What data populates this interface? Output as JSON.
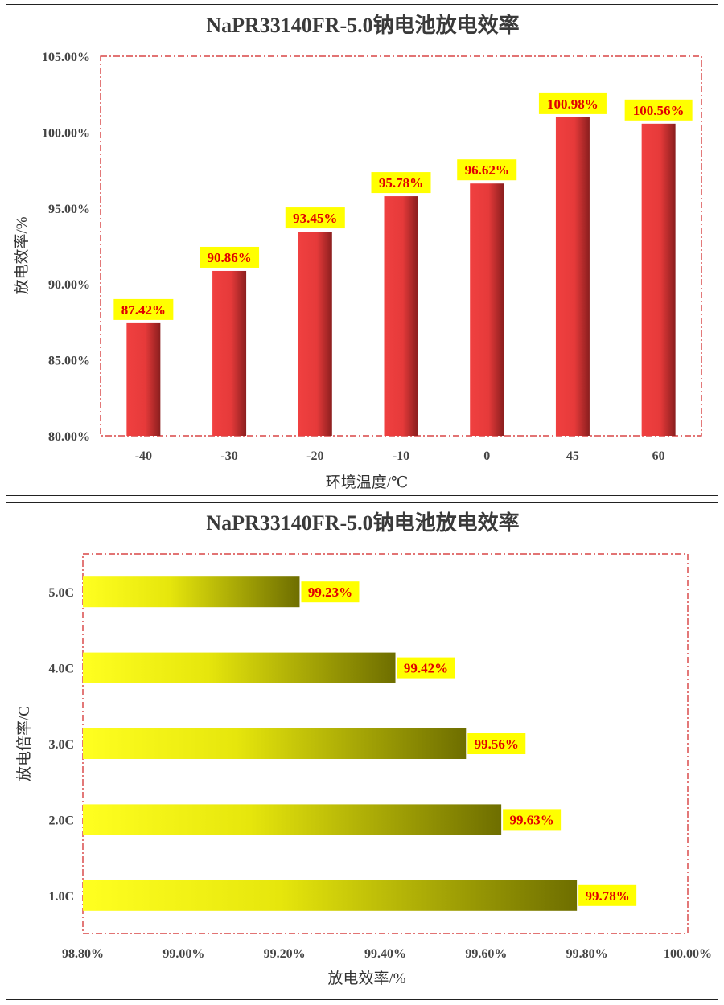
{
  "chart_data": [
    {
      "type": "bar",
      "orientation": "vertical",
      "title": "NaPR33140FR-5.0钠电池放电效率",
      "xlabel": "环境温度/℃",
      "ylabel": "放电效率/%",
      "categories": [
        "-40",
        "-30",
        "-20",
        "-10",
        "0",
        "45",
        "60"
      ],
      "values": [
        87.42,
        90.86,
        93.45,
        95.78,
        96.62,
        100.98,
        100.56
      ],
      "data_labels": [
        "87.42%",
        "90.86%",
        "93.45%",
        "95.78%",
        "96.62%",
        "100.98%",
        "100.56%"
      ],
      "ylim": [
        80,
        105
      ],
      "yticks": [
        "80.00%",
        "85.00%",
        "90.00%",
        "95.00%",
        "100.00%",
        "105.00%"
      ],
      "grid": false,
      "bar_color": "#f04040",
      "bar_color_dark": "#8a1e1e",
      "label_bg": "#ffff00",
      "label_color": "#e00000"
    },
    {
      "type": "bar",
      "orientation": "horizontal",
      "title": "NaPR33140FR-5.0钠电池放电效率",
      "xlabel": "放电效率/%",
      "ylabel": "放电倍率/C",
      "categories": [
        "5.0C",
        "4.0C",
        "3.0C",
        "2.0C",
        "1.0C"
      ],
      "values": [
        99.23,
        99.42,
        99.56,
        99.63,
        99.78
      ],
      "data_labels": [
        "99.23%",
        "99.42%",
        "99.56%",
        "99.63%",
        "99.78%"
      ],
      "xlim": [
        98.8,
        100
      ],
      "xticks": [
        "98.80%",
        "99.00%",
        "99.20%",
        "99.40%",
        "99.60%",
        "99.80%",
        "100.00%"
      ],
      "grid": false,
      "bar_color": "#ffff20",
      "bar_color_dark": "#6e6e00",
      "label_bg": "#ffff00",
      "label_color": "#e00000"
    }
  ]
}
